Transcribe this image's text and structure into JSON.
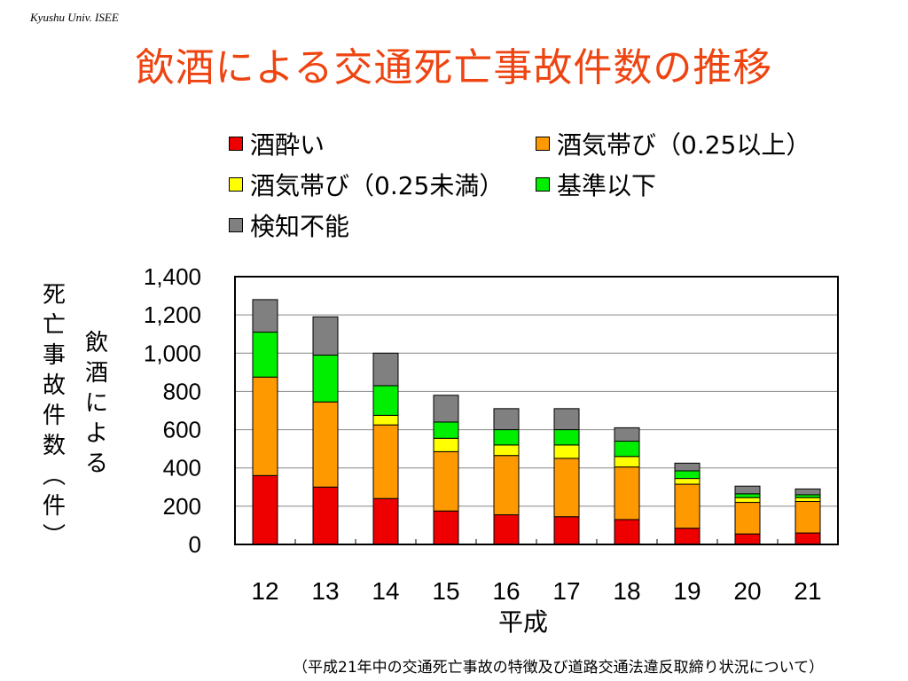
{
  "header_tag": "Kyushu Univ. ISEE",
  "title": "飲酒による交通死亡事故件数の推移",
  "y_label_outer": "死亡事故件数（件）",
  "y_label_inner": "飲酒による",
  "source_note": "（平成21年中の交通死亡事故の特徴及び道路交通法違反取締り状況について）",
  "chart_data": {
    "type": "bar",
    "stacked": true,
    "title": "",
    "xlabel": "平成",
    "ylabel": "飲酒による死亡事故件数（件）",
    "categories": [
      "12",
      "13",
      "14",
      "15",
      "16",
      "17",
      "18",
      "19",
      "20",
      "21"
    ],
    "ylim": [
      0,
      1400
    ],
    "yticks": [
      0,
      200,
      400,
      600,
      800,
      1000,
      1200,
      1400
    ],
    "ytick_labels": [
      "0",
      "200",
      "400",
      "600",
      "800",
      "1,000",
      "1,200",
      "1,400"
    ],
    "grid": true,
    "legend_position": "top",
    "series": [
      {
        "name": "酒酔い",
        "color": "#ee0000",
        "values": [
          360,
          300,
          240,
          175,
          155,
          145,
          130,
          85,
          55,
          60
        ]
      },
      {
        "name": "酒気帯び（0.25以上）",
        "color": "#ff9900",
        "values": [
          515,
          445,
          385,
          310,
          310,
          305,
          275,
          230,
          165,
          165
        ]
      },
      {
        "name": "酒気帯び（0.25未満）",
        "color": "#ffff00",
        "values": [
          0,
          0,
          50,
          70,
          55,
          70,
          55,
          30,
          25,
          20
        ]
      },
      {
        "name": "基準以下",
        "color": "#00ee00",
        "values": [
          235,
          245,
          155,
          85,
          80,
          80,
          80,
          40,
          20,
          15
        ]
      },
      {
        "name": "検知不能",
        "color": "#808080",
        "values": [
          170,
          200,
          170,
          140,
          110,
          110,
          70,
          40,
          40,
          30
        ]
      }
    ]
  }
}
